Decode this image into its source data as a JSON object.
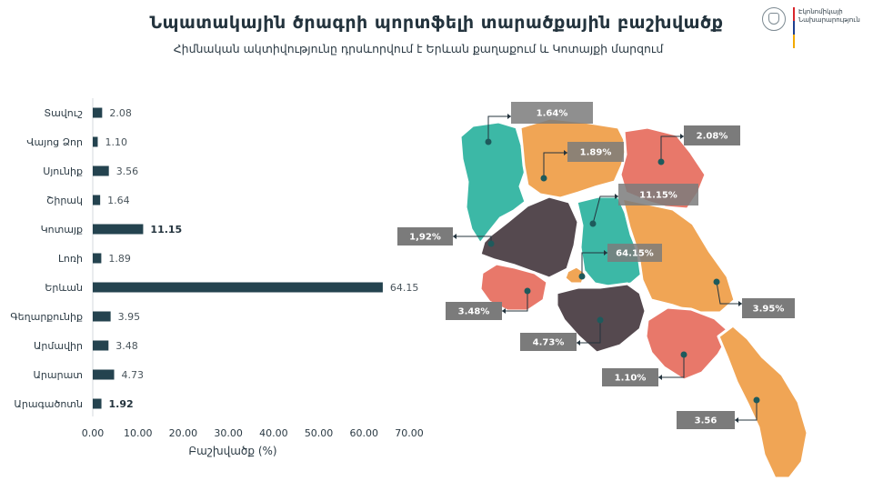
{
  "header": {
    "title": "Նպատակային ծրագրի պորտֆելի տարածքային բաշխվածք",
    "subtitle": "Հիմնական ակտիվությունը դրսևորվում է Երևան քաղաքում և Կոտայքի մարզում",
    "logo_text_line1": "Էկոնոմիկայի",
    "logo_text_line2": "Նախարարություն"
  },
  "colors": {
    "bar": "#24434f",
    "teal": "#3cb8a6",
    "orange": "#f0a555",
    "salmon": "#e8786a",
    "dark": "#55494f",
    "label_box": "#7b7b7b",
    "flag_red": "#d9262c",
    "flag_blue": "#1f3f8f",
    "flag_orange": "#f2a900"
  },
  "chart_data": {
    "type": "bar",
    "orientation": "horizontal",
    "categories": [
      "Տավուշ",
      "Վայոց Ձոր",
      "Սյունիք",
      "Շիրակ",
      "Կոտայք",
      "Լոռի",
      "Երևան",
      "Գեղարքունիք",
      "Արմավիր",
      "Արարատ",
      "Արագածոտն"
    ],
    "values": [
      2.08,
      1.1,
      3.56,
      1.64,
      11.15,
      1.89,
      64.15,
      3.95,
      3.48,
      4.73,
      1.92
    ],
    "value_labels": [
      "2.08",
      "1.10",
      "3.56",
      "1.64",
      "11.15",
      "1.89",
      "64.15",
      "3.95",
      "3.48",
      "4.73",
      "1.92"
    ],
    "bold_labels": [
      false,
      false,
      false,
      false,
      true,
      false,
      false,
      false,
      false,
      false,
      true
    ],
    "xlim": [
      0,
      70
    ],
    "xticks": [
      "0.00",
      "10.00",
      "20.00",
      "30.00",
      "40.00",
      "50.00",
      "60.00",
      "70.00"
    ],
    "xlabel": "Բաշխվածք (%)",
    "grid": false
  },
  "map": {
    "regions": [
      {
        "name": "Արագածոտն",
        "value_label": "1,92%",
        "color": "dark"
      },
      {
        "name": "Շիրակ",
        "value_label": "1.64%",
        "color": "teal"
      },
      {
        "name": "Լոռի",
        "value_label": "1.89%",
        "color": "orange"
      },
      {
        "name": "Տավուշ",
        "value_label": "2.08%",
        "color": "salmon"
      },
      {
        "name": "Կոտայք",
        "value_label": "11.15%",
        "color": "teal"
      },
      {
        "name": "Երևան",
        "value_label": "64.15%",
        "color": "orange"
      },
      {
        "name": "Գեղարքունիք",
        "value_label": "3.95%",
        "color": "orange"
      },
      {
        "name": "Արմավիր",
        "value_label": "3.48%",
        "color": "salmon"
      },
      {
        "name": "Արարատ",
        "value_label": "4.73%",
        "color": "dark"
      },
      {
        "name": "Վայոց Ձոր",
        "value_label": "1.10%",
        "color": "salmon"
      },
      {
        "name": "Սյունիք",
        "value_label": "3.56",
        "color": "orange"
      }
    ]
  }
}
